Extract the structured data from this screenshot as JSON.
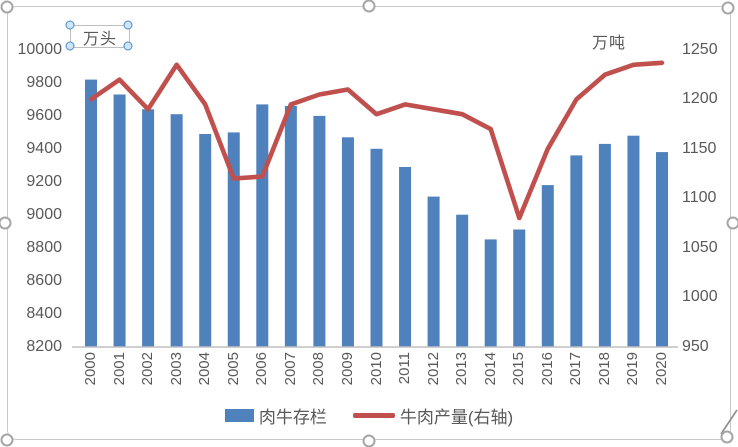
{
  "chart_data": {
    "type": "bar+line",
    "title": "",
    "categories": [
      "2000",
      "2001",
      "2002",
      "2003",
      "2004",
      "2005",
      "2006",
      "2007",
      "2008",
      "2009",
      "2010",
      "2011",
      "2012",
      "2013",
      "2014",
      "2015",
      "2016",
      "2017",
      "2018",
      "2019",
      "2020"
    ],
    "series": [
      {
        "name": "肉牛存栏",
        "type": "bar",
        "axis": "left",
        "unit": "万头",
        "color": "#4F81BD",
        "values": [
          9820,
          9730,
          9640,
          9610,
          9490,
          9500,
          9670,
          9660,
          9600,
          9470,
          9400,
          9290,
          9110,
          9000,
          8850,
          8910,
          9180,
          9360,
          9430,
          9480,
          9380
        ]
      },
      {
        "name": "牛肉产量(右轴)",
        "type": "line",
        "axis": "right",
        "unit": "万吨",
        "color": "#C0504D",
        "values": [
          1200,
          1220,
          1190,
          1235,
          1195,
          1120,
          1122,
          1195,
          1205,
          1210,
          1185,
          1195,
          1190,
          1185,
          1170,
          1080,
          1150,
          1200,
          1225,
          1235,
          1237
        ]
      }
    ],
    "left_axis": {
      "unit": "万头",
      "min": 8200,
      "max": 10000,
      "step": 200,
      "ticks": [
        "8200",
        "8400",
        "8600",
        "8800",
        "9000",
        "9200",
        "9400",
        "9600",
        "9800",
        "10000"
      ]
    },
    "right_axis": {
      "unit": "万吨",
      "min": 950,
      "max": 1250,
      "step": 50,
      "ticks": [
        "950",
        "1000",
        "1050",
        "1100",
        "1150",
        "1200",
        "1250"
      ]
    },
    "grid": false,
    "legend_position": "bottom",
    "selection": {
      "chart_selected": true,
      "textbox_selected": true
    }
  }
}
